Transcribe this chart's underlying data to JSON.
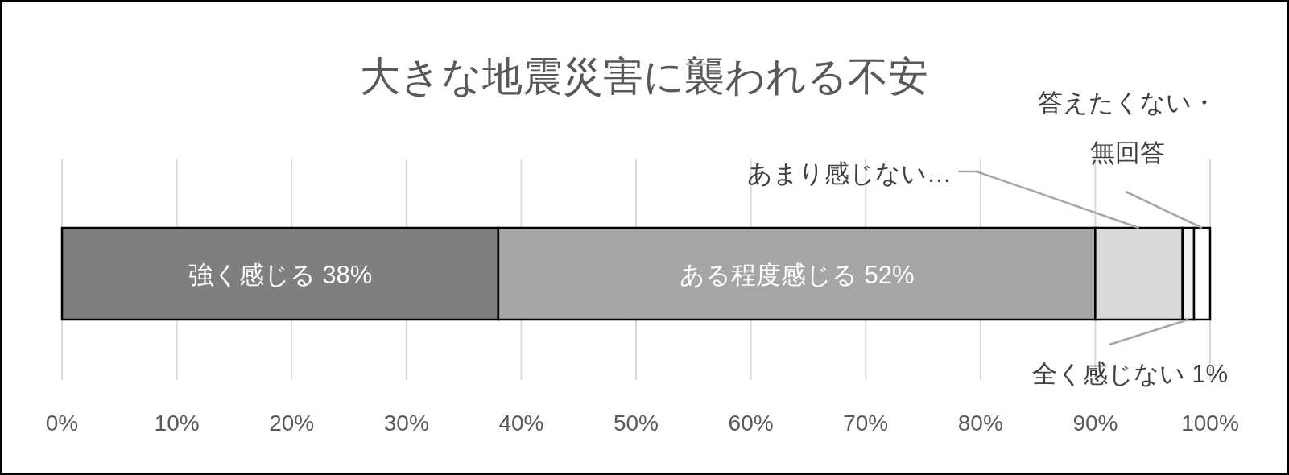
{
  "chart_data": {
    "type": "bar",
    "title": "大きな地震災害に襲われる不安",
    "orientation": "horizontal",
    "stacked": true,
    "categories": [
      null
    ],
    "series": [
      {
        "name": "強く感じる",
        "color": "#7f7f7f",
        "values": [
          38
        ],
        "value_labels": [
          "38%"
        ]
      },
      {
        "name": "ある程度感じる",
        "color": "#a5a5a5",
        "values": [
          52
        ],
        "value_labels": [
          "52%"
        ]
      },
      {
        "name": "あまり感じない…",
        "color": "#d9d9d9",
        "values": [
          7.6
        ],
        "value_labels": [
          null
        ]
      },
      {
        "name": "全く感じない",
        "color": "#f2f2f2",
        "values": [
          1
        ],
        "value_labels": [
          "1%"
        ]
      },
      {
        "name": "答えたくない・無回答",
        "color": "#ffffff",
        "values": [
          1.4
        ],
        "value_labels": [
          null
        ]
      }
    ],
    "xlim": [
      0,
      100
    ],
    "xticks": [
      {
        "value": 0,
        "label": "0%"
      },
      {
        "value": 10,
        "label": "10%"
      },
      {
        "value": 20,
        "label": "20%"
      },
      {
        "value": 30,
        "label": "30%"
      },
      {
        "value": 40,
        "label": "40%"
      },
      {
        "value": 50,
        "label": "50%"
      },
      {
        "value": 60,
        "label": "60%"
      },
      {
        "value": 70,
        "label": "70%"
      },
      {
        "value": 80,
        "label": "80%"
      },
      {
        "value": 90,
        "label": "90%"
      },
      {
        "value": 100,
        "label": "100%"
      }
    ],
    "grid": "x"
  }
}
